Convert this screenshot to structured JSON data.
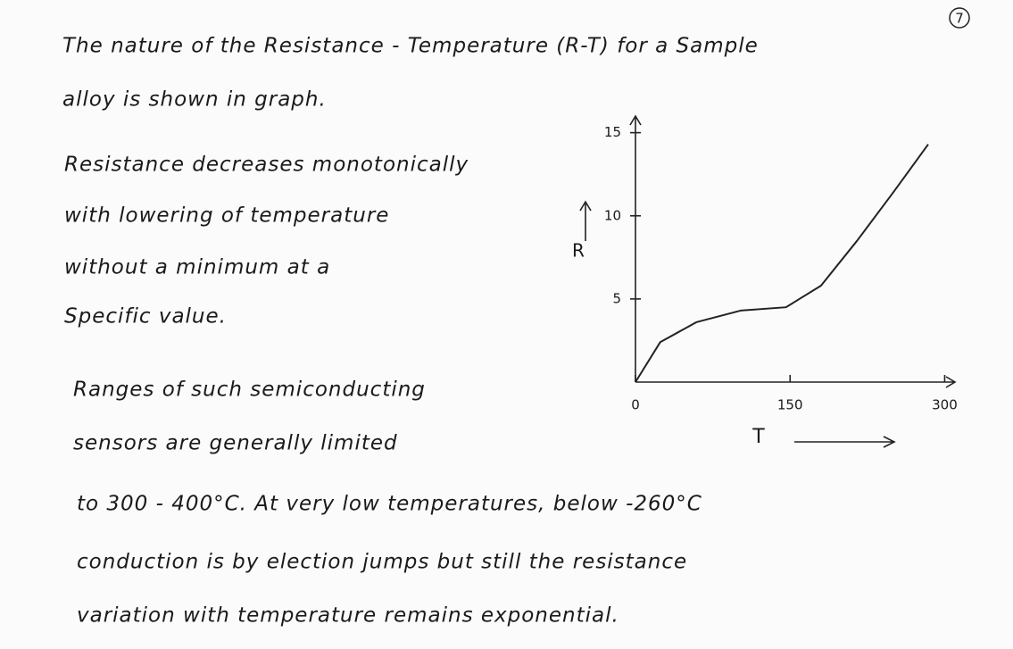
{
  "page_number": "7",
  "lines": [
    "The nature of the Resistance - Temperature (R-T) for a Sample",
    "alloy is shown in graph.",
    "Resistance decreases monotonically",
    "with lowering of temperature",
    "without a minimum at a",
    "Specific value.",
    "Ranges of such semiconducting",
    "sensors are generally limited",
    "to 300 - 400°C. At very low temperatures, below -260°C",
    "conduction is by election jumps but still the resistance",
    "variation with temperature remains exponential."
  ],
  "chart_data": {
    "type": "line",
    "y_label": "R",
    "x_label": "T",
    "x": [
      0,
      24,
      59,
      102,
      146,
      180,
      215,
      250,
      284
    ],
    "series": [
      {
        "color": "#222222",
        "values": [
          0,
          2.4,
          3.6,
          4.3,
          4.5,
          5.8,
          8.5,
          11.4,
          14.3
        ]
      }
    ],
    "xlim": [
      0,
      310
    ],
    "ylim": [
      0,
      16
    ],
    "xticks": [
      0,
      150,
      300
    ],
    "yticks": [
      5,
      10,
      15
    ]
  }
}
